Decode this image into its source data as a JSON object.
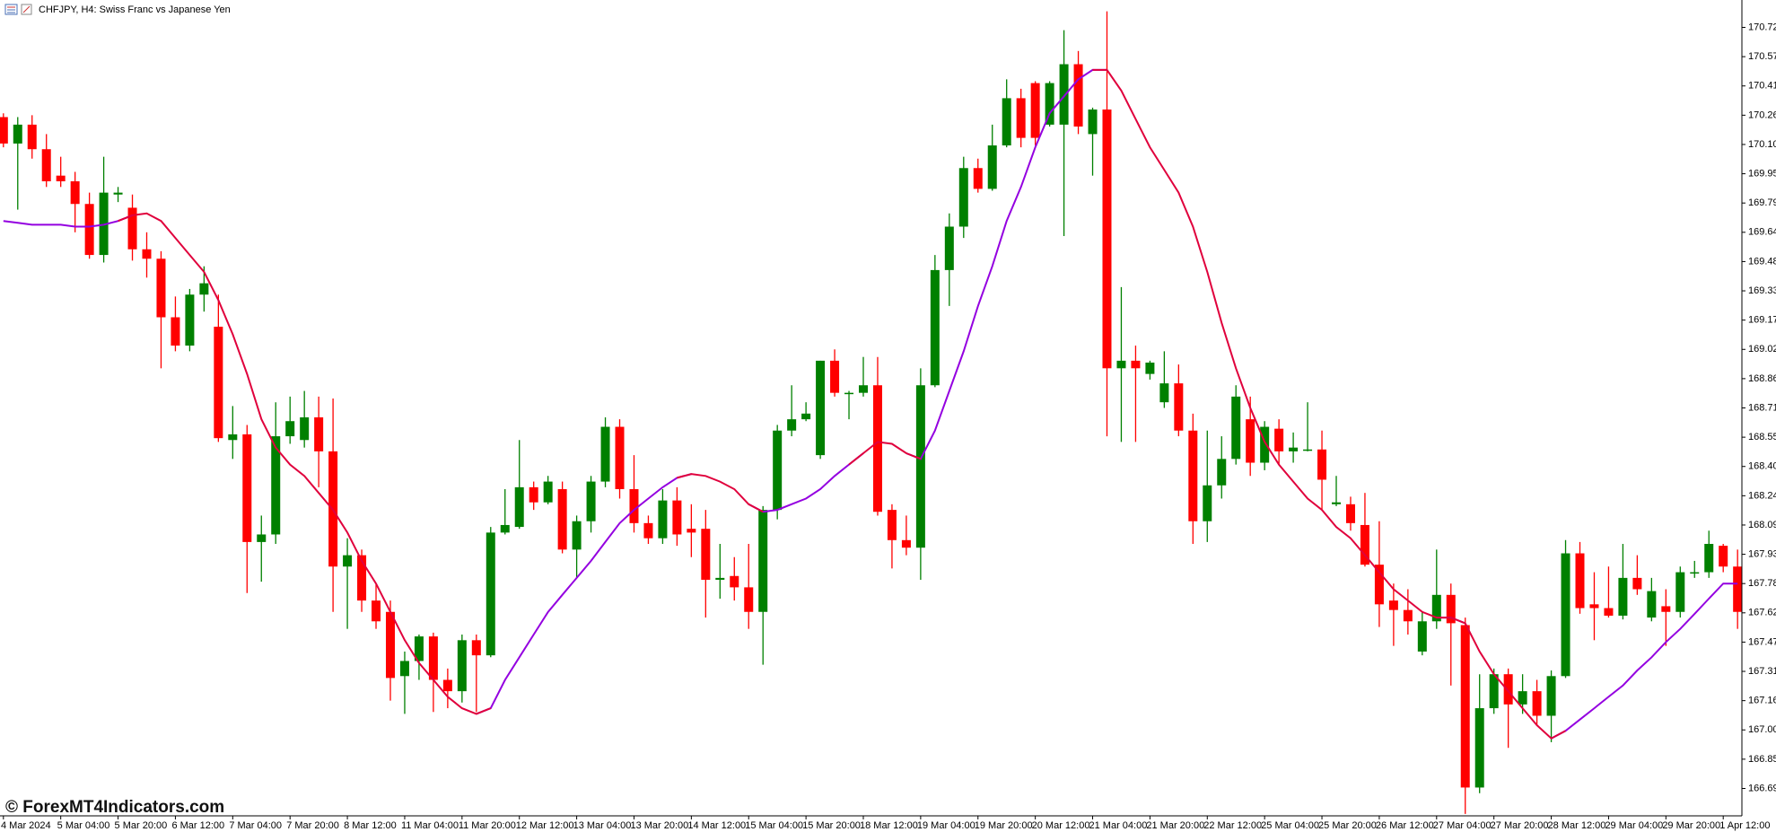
{
  "chart_data": {
    "type": "candlestick",
    "title": "CHFJPY, H4:  Swiss Franc vs Japanese Yen",
    "watermark": "© ForexMT4Indicators.com",
    "up_color": "#008000",
    "down_color": "#ff0000",
    "categories": [
      "4 Mar 2024",
      null,
      null,
      null,
      "5 Mar 04:00",
      null,
      null,
      null,
      "5 Mar 20:00",
      null,
      null,
      null,
      "6 Mar 12:00",
      null,
      null,
      null,
      "7 Mar 04:00",
      null,
      null,
      null,
      "7 Mar 20:00",
      null,
      null,
      null,
      "8 Mar 12:00",
      null,
      null,
      null,
      "11 Mar 04:00",
      null,
      null,
      null,
      "11 Mar 20:00",
      null,
      null,
      null,
      "12 Mar 12:00",
      null,
      null,
      null,
      "13 Mar 04:00",
      null,
      null,
      null,
      "13 Mar 20:00",
      null,
      null,
      null,
      "14 Mar 12:00",
      null,
      null,
      null,
      "15 Mar 04:00",
      null,
      null,
      null,
      "15 Mar 20:00",
      null,
      null,
      null,
      "18 Mar 12:00",
      null,
      null,
      null,
      "19 Mar 04:00",
      null,
      null,
      null,
      "19 Mar 20:00",
      null,
      null,
      null,
      "20 Mar 12:00",
      null,
      null,
      null,
      "21 Mar 04:00",
      null,
      null,
      null,
      "21 Mar 20:00",
      null,
      null,
      null,
      "22 Mar 12:00",
      null,
      null,
      null,
      "25 Mar 04:00",
      null,
      null,
      null,
      "25 Mar 20:00",
      null,
      null,
      null,
      "26 Mar 12:00",
      null,
      null,
      null,
      "27 Mar 04:00",
      null,
      null,
      null,
      "27 Mar 20:00",
      null,
      null,
      null,
      "28 Mar 12:00",
      null,
      null,
      null,
      "29 Mar 04:00",
      null,
      null,
      null,
      "29 Mar 20:00",
      null,
      null,
      null,
      "1 Apr 12:00",
      null
    ],
    "open": [
      170.25,
      170.11,
      170.21,
      170.08,
      169.94,
      169.91,
      169.79,
      169.52,
      169.84,
      169.77,
      169.55,
      169.5,
      169.19,
      169.04,
      169.31,
      169.14,
      168.54,
      168.57,
      168.0,
      168.04,
      168.56,
      168.54,
      168.66,
      168.48,
      167.87,
      167.93,
      167.69,
      167.63,
      167.29,
      167.37,
      167.5,
      167.27,
      167.21,
      167.48,
      167.4,
      168.05,
      168.08,
      168.29,
      168.21,
      168.28,
      167.96,
      168.11,
      168.32,
      168.61,
      168.28,
      168.1,
      168.02,
      168.22,
      168.07,
      168.07,
      167.8,
      167.82,
      167.76,
      167.63,
      168.17,
      168.59,
      168.65,
      168.46,
      168.96,
      168.79,
      168.79,
      168.83,
      168.17,
      168.01,
      167.97,
      168.83,
      169.44,
      169.67,
      169.98,
      169.87,
      170.1,
      170.35,
      170.43,
      170.21,
      170.21,
      170.53,
      170.16,
      170.29,
      168.92,
      168.96,
      168.89,
      168.74,
      168.84,
      168.59,
      168.11,
      168.3,
      168.44,
      168.65,
      168.42,
      168.6,
      168.48,
      168.49,
      168.49,
      168.2,
      168.2,
      168.09,
      167.88,
      167.69,
      167.64,
      167.42,
      167.58,
      167.72,
      167.56,
      166.7,
      167.12,
      167.3,
      167.14,
      167.21,
      167.08,
      167.29,
      167.94,
      167.67,
      167.65,
      167.61,
      167.81,
      167.6,
      167.66,
      167.63,
      167.84,
      167.84,
      167.98,
      167.87
    ],
    "high": [
      170.27,
      170.25,
      170.26,
      170.16,
      170.04,
      169.96,
      169.85,
      170.04,
      169.88,
      169.84,
      169.64,
      169.54,
      169.3,
      169.34,
      169.46,
      169.31,
      168.72,
      168.62,
      168.14,
      168.74,
      168.77,
      168.8,
      168.77,
      168.76,
      168.02,
      167.96,
      167.78,
      167.69,
      167.42,
      167.51,
      167.52,
      167.33,
      167.51,
      167.51,
      168.08,
      168.28,
      168.54,
      168.32,
      168.35,
      168.32,
      168.14,
      168.35,
      168.66,
      168.65,
      168.46,
      168.14,
      168.28,
      168.29,
      168.2,
      168.17,
      167.99,
      167.92,
      167.99,
      168.19,
      168.62,
      168.83,
      168.74,
      168.96,
      169.02,
      168.8,
      168.98,
      168.98,
      168.2,
      168.14,
      168.92,
      169.52,
      169.74,
      170.04,
      170.03,
      170.21,
      170.45,
      170.4,
      170.44,
      170.44,
      170.71,
      170.6,
      170.3,
      170.81,
      169.35,
      169.04,
      168.96,
      169.01,
      168.94,
      168.68,
      168.59,
      168.56,
      168.83,
      168.77,
      168.64,
      168.65,
      168.58,
      168.74,
      168.59,
      168.35,
      168.24,
      168.26,
      168.11,
      167.78,
      167.75,
      167.63,
      167.96,
      167.78,
      167.6,
      167.3,
      167.33,
      167.33,
      167.3,
      167.27,
      167.32,
      168.01,
      168.0,
      167.84,
      167.87,
      167.99,
      167.93,
      167.81,
      167.75,
      167.87,
      167.9,
      168.06,
      167.99,
      167.96
    ],
    "low": [
      170.09,
      169.76,
      170.03,
      169.88,
      169.88,
      169.64,
      169.5,
      169.48,
      169.8,
      169.49,
      169.4,
      168.92,
      169.01,
      169.01,
      169.22,
      168.53,
      168.44,
      167.73,
      167.79,
      167.99,
      168.52,
      168.5,
      168.29,
      167.63,
      167.54,
      167.63,
      167.54,
      167.16,
      167.09,
      167.27,
      167.1,
      167.12,
      167.15,
      167.1,
      167.39,
      168.04,
      168.07,
      168.17,
      168.2,
      167.94,
      167.81,
      168.05,
      168.29,
      168.23,
      168.05,
      167.99,
      167.99,
      167.98,
      167.92,
      167.6,
      167.7,
      167.69,
      167.54,
      167.35,
      168.12,
      168.56,
      168.64,
      168.44,
      168.77,
      168.65,
      168.77,
      168.14,
      167.86,
      167.93,
      167.8,
      168.82,
      169.25,
      169.61,
      169.85,
      169.86,
      170.09,
      170.09,
      170.1,
      170.2,
      169.62,
      170.16,
      169.94,
      168.56,
      168.53,
      168.53,
      168.86,
      168.71,
      168.56,
      167.99,
      168.0,
      168.23,
      168.41,
      168.35,
      168.38,
      168.41,
      168.42,
      168.48,
      168.17,
      168.19,
      168.06,
      167.87,
      167.55,
      167.45,
      167.51,
      167.4,
      167.54,
      167.24,
      166.56,
      166.67,
      167.09,
      166.91,
      167.09,
      167.03,
      166.94,
      167.28,
      167.62,
      167.48,
      167.6,
      167.59,
      167.72,
      167.58,
      167.45,
      167.6,
      167.81,
      167.81,
      167.84,
      167.54
    ],
    "close": [
      170.11,
      170.21,
      170.08,
      169.91,
      169.91,
      169.79,
      169.52,
      169.85,
      169.85,
      169.55,
      169.5,
      169.19,
      169.04,
      169.31,
      169.37,
      168.55,
      168.57,
      168.0,
      168.04,
      168.56,
      168.64,
      168.66,
      168.48,
      167.87,
      167.93,
      167.69,
      167.58,
      167.28,
      167.37,
      167.5,
      167.27,
      167.21,
      167.48,
      167.4,
      168.05,
      168.09,
      168.29,
      168.21,
      168.32,
      167.96,
      168.11,
      168.32,
      168.61,
      168.28,
      168.1,
      168.02,
      168.22,
      168.04,
      168.05,
      167.8,
      167.81,
      167.76,
      167.63,
      168.17,
      168.59,
      168.65,
      168.68,
      168.96,
      168.79,
      168.79,
      168.83,
      168.16,
      168.01,
      167.97,
      168.83,
      169.44,
      169.67,
      169.98,
      169.87,
      170.1,
      170.35,
      170.14,
      170.14,
      170.43,
      170.53,
      170.2,
      170.29,
      168.92,
      168.96,
      168.92,
      168.95,
      168.84,
      168.59,
      168.11,
      168.3,
      168.44,
      168.77,
      168.42,
      168.61,
      168.48,
      168.5,
      168.49,
      168.33,
      168.21,
      168.1,
      167.88,
      167.67,
      167.64,
      167.58,
      167.58,
      167.72,
      167.57,
      166.7,
      167.12,
      167.3,
      167.14,
      167.21,
      167.08,
      167.29,
      167.94,
      167.65,
      167.65,
      167.61,
      167.81,
      167.75,
      167.74,
      167.63,
      167.84,
      167.84,
      167.99,
      167.87,
      167.63
    ],
    "lines": [
      {
        "color": "#9400e0",
        "values": [
          169.7,
          169.69,
          169.68,
          169.68,
          169.68,
          169.67,
          169.67,
          169.68,
          169.7,
          169.73,
          null,
          null,
          null,
          null,
          null,
          null,
          null,
          null,
          null,
          null,
          null,
          null,
          null,
          null,
          null,
          null,
          null,
          null,
          null,
          null,
          null,
          null,
          null,
          167.09,
          167.12,
          167.27,
          167.39,
          167.51,
          167.63,
          167.72,
          167.81,
          167.9,
          168.0,
          168.1,
          168.17,
          168.23,
          168.29,
          168.34,
          168.36,
          null,
          null,
          null,
          168.2,
          168.16,
          168.17,
          168.2,
          168.23,
          168.28,
          168.35,
          168.41,
          168.47,
          null,
          null,
          168.47,
          168.44,
          168.59,
          168.8,
          169.01,
          169.25,
          169.46,
          169.7,
          169.88,
          170.09,
          170.27,
          170.36,
          170.45,
          170.5,
          170.5,
          null,
          null,
          null,
          null,
          null,
          null,
          null,
          null,
          null,
          null,
          null,
          null,
          null,
          null,
          null,
          null,
          null,
          null,
          null,
          null,
          null,
          null,
          167.6,
          167.6,
          167.57,
          null,
          null,
          null,
          null,
          null,
          166.96,
          167.0,
          167.06,
          167.12,
          167.18,
          167.24,
          167.32,
          167.39,
          167.47,
          167.54,
          167.62,
          167.7,
          167.78,
          167.78
        ]
      },
      {
        "color": "#e0003c",
        "values": [
          null,
          null,
          null,
          null,
          null,
          null,
          null,
          null,
          169.7,
          169.73,
          169.74,
          169.7,
          169.61,
          169.52,
          169.43,
          169.28,
          169.1,
          168.89,
          168.65,
          168.5,
          168.41,
          168.35,
          168.26,
          168.17,
          168.05,
          167.9,
          167.78,
          167.63,
          167.48,
          167.36,
          167.27,
          167.18,
          167.12,
          167.09,
          167.12,
          null,
          null,
          null,
          null,
          null,
          null,
          null,
          null,
          null,
          null,
          null,
          null,
          168.34,
          168.36,
          168.35,
          168.32,
          168.28,
          168.2,
          168.16,
          null,
          null,
          null,
          null,
          null,
          168.41,
          168.47,
          168.53,
          168.52,
          168.47,
          168.44,
          null,
          null,
          null,
          null,
          null,
          null,
          null,
          null,
          null,
          null,
          null,
          170.5,
          170.5,
          170.39,
          170.24,
          170.09,
          169.97,
          169.85,
          169.67,
          169.43,
          169.16,
          168.92,
          168.71,
          168.53,
          168.41,
          168.32,
          168.23,
          168.17,
          168.08,
          168.02,
          167.93,
          167.84,
          167.75,
          167.69,
          167.63,
          167.6,
          167.6,
          167.57,
          167.42,
          167.3,
          167.21,
          167.12,
          167.03,
          166.96,
          167.0,
          null,
          null,
          null,
          null,
          null,
          null,
          null,
          null,
          null,
          null,
          null,
          null
        ]
      }
    ],
    "ylim": [
      166.55,
      170.87
    ],
    "yticks": [
      170.725,
      {
        "value": 170.57,
        "label": "170.570"
      },
      170.415,
      {
        "value": 170.26,
        "label": "170.260"
      },
      170.105,
      {
        "value": 169.95,
        "label": "169.950"
      },
      169.795,
      {
        "value": 169.64,
        "label": "169.640"
      },
      169.485,
      {
        "value": 169.33,
        "label": "169.330"
      },
      169.175,
      {
        "value": 169.02,
        "label": "169.020"
      },
      168.865,
      {
        "value": 168.71,
        "label": "168.710"
      },
      168.555,
      {
        "value": 168.4,
        "label": "168.400"
      },
      168.245,
      {
        "value": 168.09,
        "label": "168.090"
      },
      167.935,
      {
        "value": 167.78,
        "label": "167.780"
      },
      167.625,
      {
        "value": 167.47,
        "label": "167.470"
      },
      167.315,
      {
        "value": 167.16,
        "label": "167.160"
      },
      167.005,
      {
        "value": 166.85,
        "label": "166.850"
      },
      166.695
    ],
    "grid": false
  }
}
